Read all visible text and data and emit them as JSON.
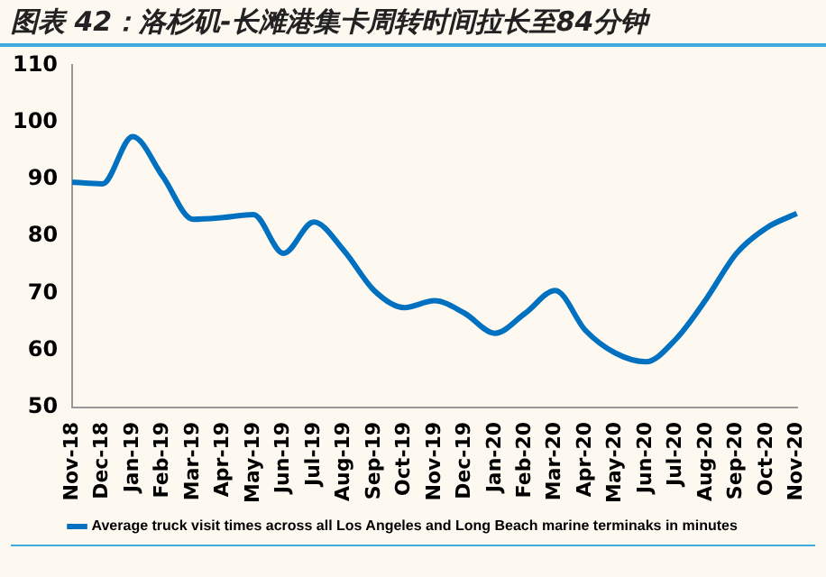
{
  "chart_data": {
    "type": "line",
    "title": "图表 42：洛杉矶-长滩港集卡周转时间拉长至84分钟",
    "categories": [
      "Nov-18",
      "Dec-18",
      "Jan-19",
      "Feb-19",
      "Mar-19",
      "Apr-19",
      "May-19",
      "Jun-19",
      "Jul-19",
      "Aug-19",
      "Sep-19",
      "Oct-19",
      "Nov-19",
      "Dec-19",
      "Jan-20",
      "Feb-20",
      "Mar-20",
      "Apr-20",
      "May-20",
      "Jun-20",
      "Jul-20",
      "Aug-20",
      "Sep-20",
      "Oct-20",
      "Nov-20"
    ],
    "series": [
      {
        "name": "Average truck visit times across all Los Angeles and Long Beach marine terminaks in minutes",
        "color": "#0070c0",
        "values": [
          89.5,
          89.2,
          97.5,
          90.5,
          83,
          83.3,
          83.8,
          77,
          82.5,
          77.5,
          70.5,
          67.5,
          68.7,
          66.5,
          63,
          66.5,
          70.5,
          63.5,
          59.5,
          58,
          62,
          69,
          77,
          81.5,
          84
        ]
      }
    ],
    "ylim": [
      50,
      110
    ],
    "yticks": [
      50,
      60,
      70,
      80,
      90,
      100,
      110
    ],
    "grid": false,
    "legend": "bottom",
    "marker": "none",
    "line_style": "solid"
  }
}
